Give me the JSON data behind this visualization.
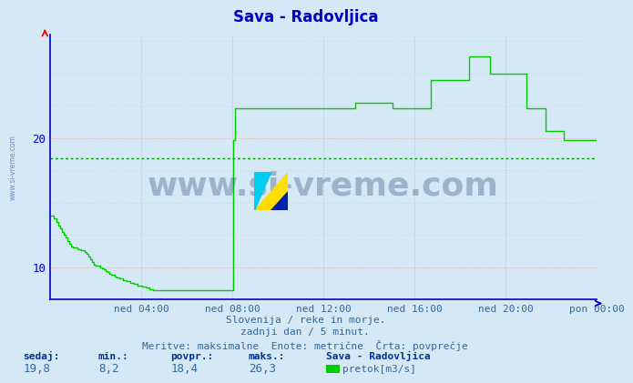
{
  "title": "Sava - Radovljica",
  "bg_color": "#d5e8f5",
  "line_color": "#00cc00",
  "avg_line_color": "#009900",
  "avg_line_value": 18.4,
  "grid_color": "#ffaaaa",
  "axis_color": "#0000cc",
  "title_color": "#0000cc",
  "text_color": "#336699",
  "bold_text_color": "#003399",
  "ylim_min": 7.5,
  "ylim_max": 28.0,
  "yticks": [
    10,
    20
  ],
  "xtick_labels": [
    "ned 04:00",
    "ned 08:00",
    "ned 12:00",
    "ned 16:00",
    "ned 20:00",
    "pon 00:00"
  ],
  "footer_line1": "Slovenija / reke in morje.",
  "footer_line2": "zadnji dan / 5 minut.",
  "footer_line3": "Meritve: maksimalne  Enote: metrične  Črta: povprečje",
  "stats_sedaj_label": "sedaj:",
  "stats_min_label": "min.:",
  "stats_povpr_label": "povpr.:",
  "stats_maks_label": "maks.:",
  "stats_sedaj": "19,8",
  "stats_min": "8,2",
  "stats_povpr": "18,4",
  "stats_maks": "26,3",
  "station_name": "Sava - Radovljica",
  "legend_label": "pretok[m3/s]",
  "watermark": "www.si-vreme.com",
  "left_watermark": "www.si-vreme.com",
  "data_y": [
    14.0,
    14.0,
    13.8,
    13.5,
    13.2,
    13.0,
    12.7,
    12.5,
    12.3,
    12.0,
    11.8,
    11.6,
    11.5,
    11.5,
    11.4,
    11.4,
    11.3,
    11.3,
    11.2,
    11.0,
    10.8,
    10.6,
    10.4,
    10.2,
    10.1,
    10.1,
    10.0,
    9.9,
    9.8,
    9.7,
    9.6,
    9.5,
    9.4,
    9.4,
    9.3,
    9.2,
    9.1,
    9.1,
    9.0,
    9.0,
    8.9,
    8.9,
    8.8,
    8.8,
    8.7,
    8.7,
    8.6,
    8.6,
    8.5,
    8.5,
    8.4,
    8.4,
    8.3,
    8.3,
    8.2,
    8.2,
    8.2,
    8.2,
    8.2,
    8.2,
    8.2,
    8.2,
    8.2,
    8.2,
    8.2,
    8.2,
    8.2,
    8.2,
    8.2,
    8.2,
    8.2,
    8.2,
    8.2,
    8.2,
    8.2,
    8.2,
    8.2,
    8.2,
    8.2,
    8.2,
    8.2,
    8.2,
    8.2,
    8.2,
    8.2,
    8.2,
    8.2,
    8.2,
    8.2,
    8.2,
    8.2,
    8.2,
    8.2,
    8.2,
    8.2,
    8.2,
    19.8,
    22.3,
    22.3,
    22.3,
    22.3,
    22.3,
    22.3,
    22.3,
    22.3,
    22.3,
    22.3,
    22.3,
    22.3,
    22.3,
    22.3,
    22.3,
    22.3,
    22.3,
    22.3,
    22.3,
    22.3,
    22.3,
    22.3,
    22.3,
    22.3,
    22.3,
    22.3,
    22.3,
    22.3,
    22.3,
    22.3,
    22.3,
    22.3,
    22.3,
    22.3,
    22.3,
    22.3,
    22.3,
    22.3,
    22.3,
    22.3,
    22.3,
    22.3,
    22.3,
    22.3,
    22.3,
    22.3,
    22.3,
    22.3,
    22.3,
    22.3,
    22.3,
    22.3,
    22.3,
    22.3,
    22.3,
    22.3,
    22.3,
    22.3,
    22.3,
    22.3,
    22.3,
    22.3,
    22.3,
    22.7,
    22.7,
    22.7,
    22.7,
    22.7,
    22.7,
    22.7,
    22.7,
    22.7,
    22.7,
    22.7,
    22.7,
    22.7,
    22.7,
    22.7,
    22.7,
    22.7,
    22.7,
    22.7,
    22.7,
    22.3,
    22.3,
    22.3,
    22.3,
    22.3,
    22.3,
    22.3,
    22.3,
    22.3,
    22.3,
    22.3,
    22.3,
    22.3,
    22.3,
    22.3,
    22.3,
    22.3,
    22.3,
    22.3,
    22.3,
    24.5,
    24.5,
    24.5,
    24.5,
    24.5,
    24.5,
    24.5,
    24.5,
    24.5,
    24.5,
    24.5,
    24.5,
    24.5,
    24.5,
    24.5,
    24.5,
    24.5,
    24.5,
    24.5,
    24.5,
    26.3,
    26.3,
    26.3,
    26.3,
    26.3,
    26.3,
    26.3,
    26.3,
    26.3,
    26.3,
    26.3,
    25.0,
    25.0,
    25.0,
    25.0,
    25.0,
    25.0,
    25.0,
    25.0,
    25.0,
    25.0,
    25.0,
    25.0,
    25.0,
    25.0,
    25.0,
    25.0,
    25.0,
    25.0,
    25.0,
    22.3,
    22.3,
    22.3,
    22.3,
    22.3,
    22.3,
    22.3,
    22.3,
    22.3,
    22.3,
    20.5,
    20.5,
    20.5,
    20.5,
    20.5,
    20.5,
    20.5,
    20.5,
    20.5,
    20.5,
    19.8,
    19.8,
    19.8,
    19.8,
    19.8,
    19.8,
    19.8,
    19.8,
    19.8,
    19.8,
    19.8,
    19.8,
    19.8,
    19.8,
    19.8,
    19.8,
    19.8,
    19.8
  ]
}
